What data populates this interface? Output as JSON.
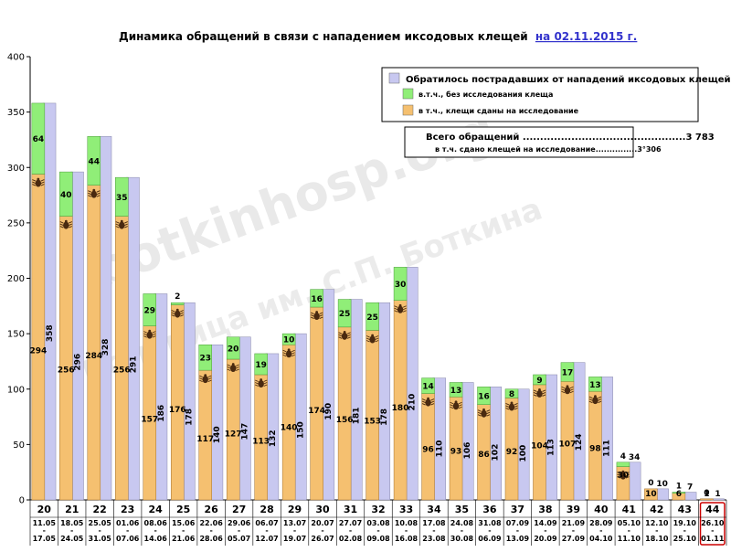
{
  "chart_data": {
    "type": "bar",
    "title": "Динамика обращений в связи с нападением иксодовых клещей",
    "title_date": "на 02.11.2015 г.",
    "ylim": [
      0,
      400
    ],
    "y_ticks": [
      "0",
      "50",
      "100",
      "150",
      "200",
      "250",
      "300",
      "350",
      "400"
    ],
    "grid": false,
    "legend": {
      "placement": "top-right",
      "items": [
        {
          "label": "Обратилось пострадавших от нападений иксодовых клещей:",
          "color": "#c8c8f0"
        },
        {
          "label": "в.т.ч., без исследования клеща",
          "color": "#90ee78"
        },
        {
          "label": "в т.ч., клещи сданы на исследование",
          "color": "#f5c070"
        }
      ]
    },
    "summary": {
      "total_label": "Всего обращений ...............................................3 783",
      "tested_label": "в т.ч. сдано клещей на исследование...............3°306"
    },
    "categories": [
      "20",
      "21",
      "22",
      "23",
      "24",
      "25",
      "26",
      "27",
      "28",
      "29",
      "30",
      "31",
      "32",
      "33",
      "34",
      "35",
      "36",
      "37",
      "38",
      "39",
      "40",
      "41",
      "42",
      "43",
      "44"
    ],
    "date_ranges": [
      [
        "11.05",
        "17.05"
      ],
      [
        "18.05",
        "24.05"
      ],
      [
        "25.05",
        "31.05"
      ],
      [
        "01.06",
        "07.06"
      ],
      [
        "08.06",
        "14.06"
      ],
      [
        "15.06",
        "21.06"
      ],
      [
        "22.06",
        "28.06"
      ],
      [
        "29.06",
        "05.07"
      ],
      [
        "06.07",
        "12.07"
      ],
      [
        "13.07",
        "19.07"
      ],
      [
        "20.07",
        "26.07"
      ],
      [
        "27.07",
        "02.08"
      ],
      [
        "03.08",
        "09.08"
      ],
      [
        "10.08",
        "16.08"
      ],
      [
        "17.08",
        "23.08"
      ],
      [
        "24.08",
        "30.08"
      ],
      [
        "31.08",
        "06.09"
      ],
      [
        "07.09",
        "13.09"
      ],
      [
        "14.09",
        "20.09"
      ],
      [
        "21.09",
        "27.09"
      ],
      [
        "28.09",
        "04.10"
      ],
      [
        "05.10",
        "11.10"
      ],
      [
        "12.10",
        "18.10"
      ],
      [
        "19.10",
        "25.10"
      ],
      [
        "26.10",
        "01.11"
      ]
    ],
    "highlight_index": 24,
    "series": [
      {
        "name": "Обратилось пострадавших от нападений иксодовых клещей:",
        "values": [
          358,
          296,
          328,
          291,
          186,
          178,
          140,
          147,
          132,
          150,
          190,
          181,
          178,
          210,
          110,
          106,
          102,
          100,
          113,
          124,
          111,
          34,
          10,
          7,
          1
        ]
      },
      {
        "name": "в.т.ч., без исследования клеща",
        "values": [
          64,
          40,
          44,
          35,
          29,
          2,
          23,
          20,
          19,
          10,
          16,
          25,
          25,
          30,
          14,
          13,
          16,
          8,
          9,
          17,
          13,
          4,
          0,
          1,
          0
        ]
      },
      {
        "name": "в т.ч., клещи сданы на исследование",
        "values": [
          294,
          256,
          284,
          256,
          157,
          176,
          117,
          127,
          113,
          140,
          174,
          156,
          153,
          180,
          96,
          93,
          86,
          92,
          104,
          107,
          98,
          30,
          10,
          6,
          1
        ]
      }
    ]
  },
  "watermark": {
    "main": "botkinhosp.org",
    "secondary": "Больница им. С.П. Боткина"
  },
  "colors": {
    "total": "#c8c8f0",
    "untested": "#90ee78",
    "tested": "#f5c070",
    "highlight": "#cc0000",
    "tick_icon": "#4a2a10"
  }
}
